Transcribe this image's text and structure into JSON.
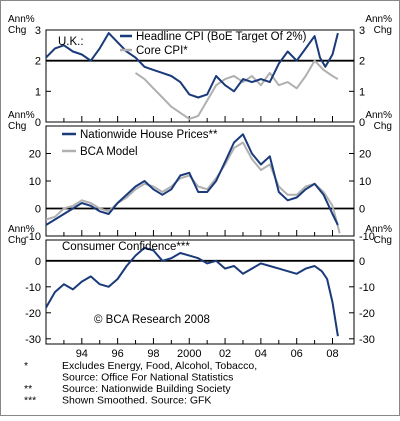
{
  "chart_data": [
    {
      "type": "line",
      "panel_label": "U.K.:",
      "y_unit_left": [
        "Ann%",
        "Chg"
      ],
      "y_unit_right": [
        "Ann%",
        "Chg"
      ],
      "ylim": [
        0,
        3
      ],
      "yticks": [
        0,
        1,
        2,
        3
      ],
      "reference_line": 2,
      "series": [
        {
          "name": "Headline CPI (BoE Target Of 2%)",
          "color": "#1a3a7a",
          "x": [
            1992.0,
            1992.5,
            1993.0,
            1993.5,
            1994.0,
            1994.5,
            1995.0,
            1995.5,
            1996.0,
            1996.5,
            1997.0,
            1997.5,
            1998.0,
            1998.5,
            1999.0,
            1999.5,
            2000.0,
            2000.5,
            2001.0,
            2001.5,
            2002.0,
            2002.5,
            2003.0,
            2003.5,
            2004.0,
            2004.5,
            2005.0,
            2005.5,
            2006.0,
            2006.5,
            2007.0,
            2007.3,
            2007.6,
            2008.0,
            2008.3
          ],
          "y": [
            2.1,
            2.4,
            2.5,
            2.3,
            2.2,
            2.0,
            2.4,
            2.9,
            2.6,
            2.3,
            2.1,
            1.8,
            1.7,
            1.6,
            1.5,
            1.3,
            0.9,
            0.8,
            0.9,
            1.5,
            1.2,
            1.0,
            1.4,
            1.3,
            1.4,
            1.3,
            1.9,
            2.3,
            2.0,
            2.4,
            2.8,
            2.1,
            1.8,
            2.2,
            2.9
          ]
        },
        {
          "name": "Core CPI*",
          "color": "#b0b0b0",
          "x": [
            1997.0,
            1997.5,
            1998.0,
            1998.5,
            1999.0,
            1999.5,
            2000.0,
            2000.5,
            2001.0,
            2001.5,
            2002.0,
            2002.5,
            2003.0,
            2003.5,
            2004.0,
            2004.5,
            2005.0,
            2005.5,
            2006.0,
            2006.5,
            2007.0,
            2007.5,
            2008.0,
            2008.3
          ],
          "y": [
            1.6,
            1.4,
            1.1,
            0.8,
            0.5,
            0.3,
            0.1,
            0.2,
            0.7,
            1.2,
            1.4,
            1.5,
            1.3,
            1.5,
            1.2,
            1.6,
            1.2,
            1.3,
            1.1,
            1.5,
            2.0,
            1.7,
            1.5,
            1.4
          ]
        }
      ]
    },
    {
      "type": "line",
      "y_unit_left": [
        "Ann%",
        "Chg"
      ],
      "y_unit_right": [
        "Ann%",
        "Chg"
      ],
      "ylim": [
        -10,
        30
      ],
      "yticks": [
        -10,
        0,
        10,
        20
      ],
      "reference_line": 0,
      "series": [
        {
          "name": "Nationwide House Prices**",
          "color": "#1a3a7a",
          "x": [
            1992.0,
            1992.5,
            1993.0,
            1993.5,
            1994.0,
            1994.5,
            1995.0,
            1995.5,
            1996.0,
            1996.5,
            1997.0,
            1997.5,
            1998.0,
            1998.5,
            1999.0,
            1999.5,
            2000.0,
            2000.5,
            2001.0,
            2001.5,
            2002.0,
            2002.5,
            2003.0,
            2003.5,
            2004.0,
            2004.5,
            2005.0,
            2005.5,
            2006.0,
            2006.5,
            2007.0,
            2007.5,
            2008.0,
            2008.3
          ],
          "y": [
            -6,
            -4,
            -2,
            0,
            2,
            1,
            -1,
            -2,
            2,
            5,
            8,
            10,
            7,
            5,
            7,
            12,
            13,
            6,
            6,
            10,
            17,
            24,
            27,
            20,
            16,
            19,
            6,
            3,
            4,
            7,
            9,
            5,
            -2,
            -6
          ]
        },
        {
          "name": "BCA Model",
          "color": "#b0b0b0",
          "x": [
            1992.0,
            1992.5,
            1993.0,
            1993.5,
            1994.0,
            1994.5,
            1995.0,
            1995.5,
            1996.0,
            1996.5,
            1997.0,
            1997.5,
            1998.0,
            1998.5,
            1999.0,
            1999.5,
            2000.0,
            2000.5,
            2001.0,
            2001.5,
            2002.0,
            2002.5,
            2003.0,
            2003.5,
            2004.0,
            2004.5,
            2005.0,
            2005.5,
            2006.0,
            2006.5,
            2007.0,
            2007.5,
            2008.0,
            2008.4
          ],
          "y": [
            -4,
            -3,
            0,
            1,
            3,
            2,
            0,
            -1,
            2,
            4,
            7,
            9,
            8,
            6,
            8,
            11,
            12,
            8,
            7,
            11,
            16,
            22,
            24,
            18,
            14,
            16,
            8,
            5,
            5,
            8,
            9,
            6,
            1,
            -9
          ]
        }
      ]
    },
    {
      "type": "line",
      "panel_label": "Consumer Confidence***",
      "y_unit_left": [
        "Ann%",
        "Chg"
      ],
      "y_unit_right": [
        "Ann%",
        "Chg"
      ],
      "ylim": [
        -32,
        8
      ],
      "yticks": [
        -30,
        -20,
        -10,
        0
      ],
      "reference_line": 0,
      "annotation": "© BCA Research 2008",
      "series": [
        {
          "name": "Consumer Confidence",
          "color": "#1a3a7a",
          "x": [
            1992.0,
            1992.5,
            1993.0,
            1993.5,
            1994.0,
            1994.5,
            1995.0,
            1995.5,
            1996.0,
            1996.5,
            1997.0,
            1997.5,
            1998.0,
            1998.5,
            1999.0,
            1999.5,
            2000.0,
            2000.5,
            2001.0,
            2001.5,
            2002.0,
            2002.5,
            2003.0,
            2003.5,
            2004.0,
            2004.5,
            2005.0,
            2005.5,
            2006.0,
            2006.5,
            2007.0,
            2007.4,
            2007.7,
            2008.0,
            2008.3
          ],
          "y": [
            -18,
            -12,
            -9,
            -11,
            -8,
            -6,
            -9,
            -10,
            -7,
            -2,
            2,
            5,
            4,
            0,
            1,
            3,
            2,
            1,
            -1,
            0,
            -3,
            -2,
            -5,
            -3,
            -1,
            -2,
            -3,
            -4,
            -5,
            -3,
            -2,
            -4,
            -7,
            -16,
            -29
          ]
        }
      ]
    }
  ],
  "x_axis": {
    "xlim": [
      1992.0,
      2009.2
    ],
    "tick_years": [
      1993,
      1994,
      1995,
      1996,
      1997,
      1998,
      1999,
      2000,
      2001,
      2002,
      2003,
      2004,
      2005,
      2006,
      2007,
      2008
    ],
    "label_years": [
      1994,
      1996,
      1998,
      2000,
      2002,
      2004,
      2006,
      2008
    ],
    "labels": [
      "94",
      "96",
      "98",
      "2000",
      "02",
      "04",
      "06",
      "08"
    ]
  },
  "footnotes": [
    {
      "marker": "*",
      "lines": [
        "Excludes Energy, Food, Alcohol, Tobacco,",
        "Source: Office For National Statistics"
      ]
    },
    {
      "marker": "**",
      "lines": [
        "Source: Nationwide Building Society"
      ]
    },
    {
      "marker": "***",
      "lines": [
        "Shown Smoothed. Source: GFK"
      ]
    }
  ]
}
